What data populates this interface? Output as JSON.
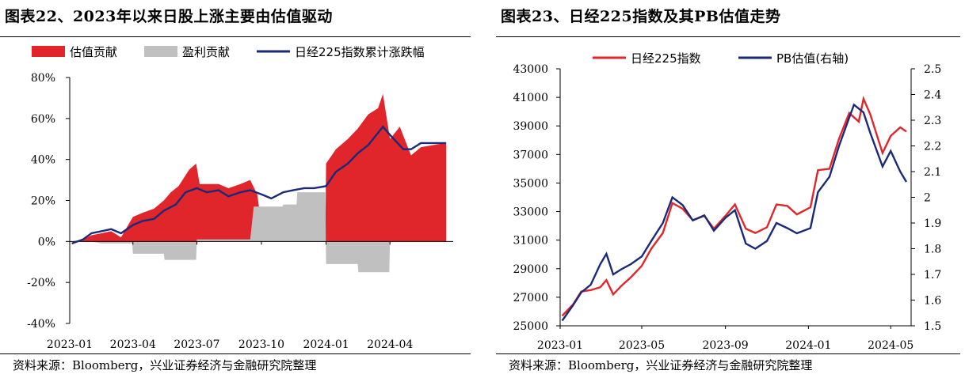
{
  "left_panel": {
    "title": "图表22、2023年以来日股上涨主要由估值驱动",
    "source": "资料来源：Bloomberg，兴业证券经济与金融研究院整理"
  },
  "right_panel": {
    "title": "图表23、日经225指数及其PB估值走势",
    "source": "资料来源：Bloomberg，兴业证券经济与金融研究院整理"
  },
  "colors": {
    "red": "#e0262b",
    "gray": "#c0c0c0",
    "navy": "#1a2a78"
  },
  "chart_data": [
    {
      "type": "area",
      "x_type": "date",
      "xlim": [
        "2023-01-01",
        "2024-06-30"
      ],
      "ylim": [
        -40,
        80
      ],
      "y_unit": "%",
      "y_ticks": [
        "-40%",
        "-20%",
        "0%",
        "20%",
        "40%",
        "60%",
        "80%"
      ],
      "y_tick_values": [
        -40,
        -20,
        0,
        20,
        40,
        60,
        80
      ],
      "x_ticks": [
        "2023-01",
        "2023-04",
        "2023-07",
        "2023-10",
        "2024-01",
        "2024-04"
      ],
      "legend_position": "top",
      "series": [
        {
          "name": "估值贡献",
          "style": "area",
          "color": "#e0262b",
          "points": [
            [
              "2023-01-04",
              0
            ],
            [
              "2023-01-20",
              1
            ],
            [
              "2023-02-01",
              3
            ],
            [
              "2023-02-15",
              4
            ],
            [
              "2023-03-01",
              5
            ],
            [
              "2023-03-15",
              2
            ],
            [
              "2023-04-01",
              12
            ],
            [
              "2023-04-15",
              14
            ],
            [
              "2023-05-01",
              16
            ],
            [
              "2023-05-15",
              20
            ],
            [
              "2023-05-25",
              24
            ],
            [
              "2023-06-05",
              27
            ],
            [
              "2023-06-20",
              35
            ],
            [
              "2023-06-30",
              38
            ],
            [
              "2023-07-05",
              28
            ],
            [
              "2023-07-15",
              28
            ],
            [
              "2023-08-01",
              28
            ],
            [
              "2023-08-15",
              26
            ],
            [
              "2023-09-01",
              28
            ],
            [
              "2023-09-15",
              30
            ],
            [
              "2023-09-25",
              23
            ],
            [
              "2023-10-01",
              8
            ],
            [
              "2023-10-15",
              0
            ],
            [
              "2023-11-01",
              0
            ],
            [
              "2023-11-15",
              0
            ],
            [
              "2023-12-01",
              0
            ],
            [
              "2023-12-15",
              0
            ],
            [
              "2023-12-31",
              0
            ],
            [
              "2024-01-01",
              38
            ],
            [
              "2024-01-15",
              45
            ],
            [
              "2024-02-01",
              50
            ],
            [
              "2024-02-15",
              55
            ],
            [
              "2024-03-01",
              62
            ],
            [
              "2024-03-15",
              65
            ],
            [
              "2024-03-22",
              72
            ],
            [
              "2024-04-01",
              50
            ],
            [
              "2024-04-15",
              56
            ],
            [
              "2024-05-01",
              42
            ],
            [
              "2024-05-15",
              46
            ],
            [
              "2024-06-01",
              47
            ],
            [
              "2024-06-20",
              48
            ]
          ]
        },
        {
          "name": "盈利贡献",
          "style": "area",
          "color": "#c0c0c0",
          "points": [
            [
              "2023-01-04",
              0
            ],
            [
              "2023-02-01",
              0
            ],
            [
              "2023-02-15",
              -1
            ],
            [
              "2023-03-31",
              -1
            ],
            [
              "2023-04-01",
              -6
            ],
            [
              "2023-05-15",
              -6
            ],
            [
              "2023-05-16",
              -9
            ],
            [
              "2023-06-30",
              -9
            ],
            [
              "2023-07-01",
              1
            ],
            [
              "2023-09-15",
              1
            ],
            [
              "2023-09-20",
              17
            ],
            [
              "2023-10-31",
              17
            ],
            [
              "2023-11-01",
              18
            ],
            [
              "2023-11-20",
              18
            ],
            [
              "2023-11-21",
              24
            ],
            [
              "2023-12-31",
              24
            ],
            [
              "2024-01-01",
              -11
            ],
            [
              "2024-02-15",
              -11
            ],
            [
              "2024-02-16",
              -15
            ],
            [
              "2024-03-31",
              -15
            ],
            [
              "2024-04-01",
              0
            ],
            [
              "2024-06-20",
              0
            ]
          ]
        },
        {
          "name": "日经225指数累计涨跌幅",
          "style": "line",
          "color": "#1a2a78",
          "points": [
            [
              "2023-01-04",
              -1
            ],
            [
              "2023-01-20",
              1
            ],
            [
              "2023-02-01",
              4
            ],
            [
              "2023-02-15",
              5
            ],
            [
              "2023-03-01",
              6
            ],
            [
              "2023-03-15",
              4
            ],
            [
              "2023-04-01",
              8
            ],
            [
              "2023-04-15",
              10
            ],
            [
              "2023-05-01",
              11
            ],
            [
              "2023-05-15",
              15
            ],
            [
              "2023-06-01",
              18
            ],
            [
              "2023-06-15",
              24
            ],
            [
              "2023-07-01",
              26
            ],
            [
              "2023-07-15",
              24
            ],
            [
              "2023-08-01",
              25
            ],
            [
              "2023-08-15",
              22
            ],
            [
              "2023-09-01",
              24
            ],
            [
              "2023-09-15",
              25
            ],
            [
              "2023-10-01",
              23
            ],
            [
              "2023-10-15",
              21
            ],
            [
              "2023-11-01",
              24
            ],
            [
              "2023-11-15",
              25
            ],
            [
              "2023-12-01",
              26
            ],
            [
              "2023-12-15",
              26
            ],
            [
              "2024-01-01",
              27
            ],
            [
              "2024-01-15",
              34
            ],
            [
              "2024-02-01",
              38
            ],
            [
              "2024-02-15",
              43
            ],
            [
              "2024-03-01",
              47
            ],
            [
              "2024-03-15",
              53
            ],
            [
              "2024-03-22",
              56
            ],
            [
              "2024-04-01",
              52
            ],
            [
              "2024-04-20",
              45
            ],
            [
              "2024-05-01",
              45
            ],
            [
              "2024-05-15",
              48
            ],
            [
              "2024-06-01",
              48
            ],
            [
              "2024-06-20",
              48
            ]
          ]
        }
      ]
    },
    {
      "type": "line",
      "x_type": "date",
      "xlim": [
        "2023-01-01",
        "2024-05-31"
      ],
      "ylim": [
        25000,
        43000
      ],
      "y2lim": [
        1.5,
        2.5
      ],
      "y_ticks": [
        "25000",
        "27000",
        "29000",
        "31000",
        "33000",
        "35000",
        "37000",
        "39000",
        "41000",
        "43000"
      ],
      "y_tick_values": [
        25000,
        27000,
        29000,
        31000,
        33000,
        35000,
        37000,
        39000,
        41000,
        43000
      ],
      "y2_ticks": [
        "1.5",
        "1.6",
        "1.7",
        "1.8",
        "1.9",
        "2",
        "2.1",
        "2.2",
        "2.3",
        "2.4",
        "2.5"
      ],
      "y2_tick_values": [
        1.5,
        1.6,
        1.7,
        1.8,
        1.9,
        2.0,
        2.1,
        2.2,
        2.3,
        2.4,
        2.5
      ],
      "x_ticks": [
        "2023-01",
        "2023-05",
        "2023-09",
        "2024-01",
        "2024-05"
      ],
      "legend_position": "top",
      "series": [
        {
          "name": "日经225指数",
          "axis": "left",
          "color": "#e0262b",
          "points": [
            [
              "2023-01-04",
              25700
            ],
            [
              "2023-01-20",
              26500
            ],
            [
              "2023-02-01",
              27400
            ],
            [
              "2023-02-15",
              27500
            ],
            [
              "2023-03-01",
              27700
            ],
            [
              "2023-03-10",
              28200
            ],
            [
              "2023-03-20",
              27200
            ],
            [
              "2023-04-01",
              27800
            ],
            [
              "2023-04-15",
              28400
            ],
            [
              "2023-05-01",
              29200
            ],
            [
              "2023-05-15",
              30400
            ],
            [
              "2023-06-01",
              31500
            ],
            [
              "2023-06-15",
              33600
            ],
            [
              "2023-06-30",
              33200
            ],
            [
              "2023-07-15",
              32400
            ],
            [
              "2023-08-01",
              32700
            ],
            [
              "2023-08-15",
              31800
            ],
            [
              "2023-09-01",
              32700
            ],
            [
              "2023-09-15",
              33500
            ],
            [
              "2023-10-01",
              31800
            ],
            [
              "2023-10-15",
              31500
            ],
            [
              "2023-11-01",
              31900
            ],
            [
              "2023-11-15",
              33500
            ],
            [
              "2023-12-01",
              33400
            ],
            [
              "2023-12-15",
              32800
            ],
            [
              "2024-01-04",
              33300
            ],
            [
              "2024-01-15",
              35900
            ],
            [
              "2024-02-01",
              36000
            ],
            [
              "2024-02-15",
              38100
            ],
            [
              "2024-03-01",
              39900
            ],
            [
              "2024-03-15",
              39300
            ],
            [
              "2024-03-22",
              40900
            ],
            [
              "2024-04-01",
              39800
            ],
            [
              "2024-04-19",
              37100
            ],
            [
              "2024-05-01",
              38300
            ],
            [
              "2024-05-15",
              38900
            ],
            [
              "2024-05-24",
              38600
            ]
          ]
        },
        {
          "name": "PB估值(右轴)",
          "axis": "right",
          "color": "#1a2a78",
          "points": [
            [
              "2023-01-04",
              1.52
            ],
            [
              "2023-01-20",
              1.58
            ],
            [
              "2023-02-01",
              1.63
            ],
            [
              "2023-02-15",
              1.66
            ],
            [
              "2023-03-01",
              1.74
            ],
            [
              "2023-03-10",
              1.78
            ],
            [
              "2023-03-20",
              1.7
            ],
            [
              "2023-04-01",
              1.72
            ],
            [
              "2023-04-15",
              1.74
            ],
            [
              "2023-05-01",
              1.77
            ],
            [
              "2023-05-15",
              1.83
            ],
            [
              "2023-06-01",
              1.9
            ],
            [
              "2023-06-15",
              2.0
            ],
            [
              "2023-06-30",
              1.97
            ],
            [
              "2023-07-15",
              1.91
            ],
            [
              "2023-08-01",
              1.93
            ],
            [
              "2023-08-15",
              1.87
            ],
            [
              "2023-09-01",
              1.92
            ],
            [
              "2023-09-15",
              1.95
            ],
            [
              "2023-10-01",
              1.82
            ],
            [
              "2023-10-15",
              1.8
            ],
            [
              "2023-11-01",
              1.83
            ],
            [
              "2023-11-15",
              1.9
            ],
            [
              "2023-12-01",
              1.88
            ],
            [
              "2023-12-15",
              1.86
            ],
            [
              "2024-01-04",
              1.88
            ],
            [
              "2024-01-15",
              2.02
            ],
            [
              "2024-02-01",
              2.08
            ],
            [
              "2024-02-15",
              2.2
            ],
            [
              "2024-03-01",
              2.31
            ],
            [
              "2024-03-08",
              2.36
            ],
            [
              "2024-03-22",
              2.33
            ],
            [
              "2024-04-01",
              2.25
            ],
            [
              "2024-04-19",
              2.12
            ],
            [
              "2024-05-01",
              2.18
            ],
            [
              "2024-05-15",
              2.1
            ],
            [
              "2024-05-24",
              2.06
            ]
          ]
        }
      ]
    }
  ]
}
